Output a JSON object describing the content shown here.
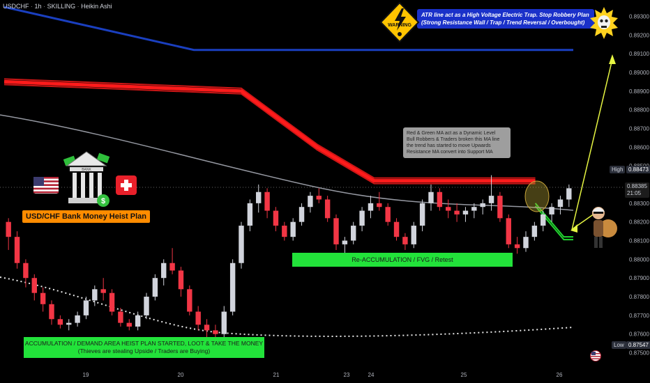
{
  "header": {
    "symbol": "USDCHF",
    "interval": "1h",
    "author": "SKILLING",
    "style": "Heikin Ashi",
    "sep": "·"
  },
  "price_axis": {
    "ticks": [
      "0.89300",
      "0.89200",
      "0.89100",
      "0.89000",
      "0.88900",
      "0.88800",
      "0.88700",
      "0.88600",
      "0.88500",
      "0.88300",
      "0.88200",
      "0.88100",
      "0.88000",
      "0.87900",
      "0.87800",
      "0.87700",
      "0.87600",
      "0.87500"
    ],
    "high_label": "High",
    "high_value": "0.88473",
    "low_label": "Low",
    "low_value": "0.87547",
    "current_value": "0.88385",
    "countdown": "21:05"
  },
  "time_axis": {
    "ticks": [
      "19",
      "20",
      "21",
      "23",
      "24",
      "25",
      "26"
    ]
  },
  "annotations": {
    "atr_note_line1": "ATR line act as a High Voltage Electric Trap. Stop Robbery Plan",
    "atr_note_line2": "(Strong Resistance Wall / Trap / Trend Reversal / Overbought)",
    "warning_text": "WARNING",
    "ma_note_line1": "Red & Green MA act as a Dynamic Level",
    "ma_note_line2": "Bull Robbers & Traders broken this MA line",
    "ma_note_line3": "the trend has started to move Upwards",
    "ma_note_line4": "Resistance MA convert into Support MA",
    "plan_title": "USD/CHF Bank Money Heist Plan",
    "reaccumulation": "Re-ACCUMULATION / FVG / Retest",
    "accumulation_line1": "ACCUMULATION / DEMAND AREA HEIST PLAN STARTED, LOOT & TAKE THE MONEY",
    "accumulation_line2": "(Thieves are stealing Upside / Traders are Buying)",
    "bank_label": "BANK"
  },
  "colors": {
    "bull": "#d1d4dc",
    "bear": "#f23645",
    "atr_line": "#1a3fbf",
    "red_ma": "#ff1b1b",
    "green_ma": "#22d630",
    "grey_ma": "#9598a1",
    "dotted_line": "#e8e8e8",
    "arrow": "#e6f542"
  },
  "icons": [
    "us-flag-icon",
    "bank-money-icon",
    "swiss-flag-icon",
    "warning-sign-icon",
    "skull-sun-icon",
    "thief-icon",
    "us-flag-round-icon"
  ],
  "chart_data": {
    "type": "candlestick",
    "style": "heikin-ashi",
    "x_dates": [
      "19",
      "20",
      "21",
      "23",
      "24",
      "25",
      "26"
    ],
    "ylim": [
      0.8745,
      0.8935
    ],
    "grid": false,
    "key_levels": {
      "high": 0.88473,
      "low": 0.87547,
      "last": 0.88385
    },
    "series": [
      {
        "name": "ATR line",
        "approx_path": [
          [
            0,
            0.8935
          ],
          [
            40,
            0.8912
          ],
          [
            120,
            0.8912
          ]
        ]
      },
      {
        "name": "Red MA",
        "approx_path": [
          [
            0,
            0.8895
          ],
          [
            50,
            0.889
          ],
          [
            66,
            0.886
          ],
          [
            78,
            0.8842
          ],
          [
            112,
            0.8842
          ]
        ]
      },
      {
        "name": "Green MA",
        "approx_path": [
          [
            112,
            0.883
          ],
          [
            118,
            0.8812
          ],
          [
            120,
            0.8812
          ]
        ]
      }
    ],
    "ohlc": [
      [
        0.882,
        0.8822,
        0.8805,
        0.8812
      ],
      [
        0.8812,
        0.8815,
        0.8795,
        0.8798
      ],
      [
        0.8798,
        0.88,
        0.8785,
        0.879
      ],
      [
        0.879,
        0.8792,
        0.8778,
        0.8782
      ],
      [
        0.8782,
        0.8785,
        0.8772,
        0.8776
      ],
      [
        0.8776,
        0.8778,
        0.8765,
        0.8768
      ],
      [
        0.8768,
        0.877,
        0.8763,
        0.8765
      ],
      [
        0.8765,
        0.8768,
        0.8762,
        0.8766
      ],
      [
        0.8766,
        0.8772,
        0.8764,
        0.877
      ],
      [
        0.877,
        0.878,
        0.8768,
        0.8778
      ],
      [
        0.8778,
        0.8786,
        0.8775,
        0.8784
      ],
      [
        0.8784,
        0.879,
        0.8778,
        0.8782
      ],
      [
        0.8782,
        0.8784,
        0.877,
        0.8772
      ],
      [
        0.8772,
        0.8774,
        0.8764,
        0.8766
      ],
      [
        0.8766,
        0.8768,
        0.8762,
        0.8764
      ],
      [
        0.8764,
        0.8772,
        0.8762,
        0.877
      ],
      [
        0.877,
        0.8782,
        0.8768,
        0.878
      ],
      [
        0.878,
        0.8792,
        0.8778,
        0.879
      ],
      [
        0.879,
        0.88,
        0.8786,
        0.8798
      ],
      [
        0.8798,
        0.8806,
        0.8792,
        0.8794
      ],
      [
        0.8794,
        0.8796,
        0.878,
        0.8784
      ],
      [
        0.8784,
        0.8786,
        0.877,
        0.8772
      ],
      [
        0.8772,
        0.8775,
        0.8762,
        0.8765
      ],
      [
        0.8765,
        0.8768,
        0.8758,
        0.8762
      ],
      [
        0.8762,
        0.8765,
        0.8757,
        0.876
      ],
      [
        0.876,
        0.8775,
        0.8758,
        0.8772
      ],
      [
        0.8772,
        0.88,
        0.877,
        0.8798
      ],
      [
        0.8798,
        0.882,
        0.8795,
        0.8818
      ],
      [
        0.8818,
        0.8832,
        0.8815,
        0.883
      ],
      [
        0.883,
        0.884,
        0.8825,
        0.8836
      ],
      [
        0.8836,
        0.8838,
        0.8822,
        0.8826
      ],
      [
        0.8826,
        0.8828,
        0.8815,
        0.8818
      ],
      [
        0.8818,
        0.882,
        0.881,
        0.8812
      ],
      [
        0.8812,
        0.8822,
        0.881,
        0.882
      ],
      [
        0.882,
        0.883,
        0.8818,
        0.8828
      ],
      [
        0.8828,
        0.8836,
        0.8825,
        0.8834
      ],
      [
        0.8834,
        0.8838,
        0.883,
        0.8832
      ],
      [
        0.8832,
        0.8834,
        0.882,
        0.8822
      ],
      [
        0.8822,
        0.8824,
        0.8805,
        0.8808
      ],
      [
        0.8808,
        0.8812,
        0.8803,
        0.881
      ],
      [
        0.881,
        0.882,
        0.8808,
        0.8818
      ],
      [
        0.8818,
        0.8828,
        0.8815,
        0.8826
      ],
      [
        0.8826,
        0.8834,
        0.8822,
        0.883
      ],
      [
        0.883,
        0.8836,
        0.8826,
        0.8828
      ],
      [
        0.8828,
        0.883,
        0.8818,
        0.882
      ],
      [
        0.882,
        0.8822,
        0.881,
        0.8812
      ],
      [
        0.8812,
        0.8814,
        0.8805,
        0.8808
      ],
      [
        0.8808,
        0.882,
        0.8806,
        0.8818
      ],
      [
        0.8818,
        0.8832,
        0.8815,
        0.883
      ],
      [
        0.883,
        0.884,
        0.8826,
        0.8836
      ],
      [
        0.8836,
        0.8838,
        0.8826,
        0.8828
      ],
      [
        0.8828,
        0.8832,
        0.8822,
        0.8826
      ],
      [
        0.8826,
        0.883,
        0.882,
        0.8824
      ],
      [
        0.8824,
        0.8828,
        0.882,
        0.8826
      ],
      [
        0.8826,
        0.883,
        0.8822,
        0.8828
      ],
      [
        0.8828,
        0.8832,
        0.8824,
        0.883
      ],
      [
        0.883,
        0.8845,
        0.8826,
        0.8834
      ],
      [
        0.8834,
        0.8836,
        0.882,
        0.8822
      ],
      [
        0.8822,
        0.8824,
        0.8806,
        0.8808
      ],
      [
        0.8808,
        0.8812,
        0.8803,
        0.8806
      ],
      [
        0.8806,
        0.8815,
        0.8804,
        0.8812
      ],
      [
        0.8812,
        0.882,
        0.881,
        0.8818
      ],
      [
        0.8818,
        0.8826,
        0.8815,
        0.8824
      ],
      [
        0.8824,
        0.883,
        0.882,
        0.8828
      ],
      [
        0.8828,
        0.8834,
        0.8824,
        0.8832
      ],
      [
        0.8832,
        0.884,
        0.8828,
        0.8838
      ]
    ]
  }
}
